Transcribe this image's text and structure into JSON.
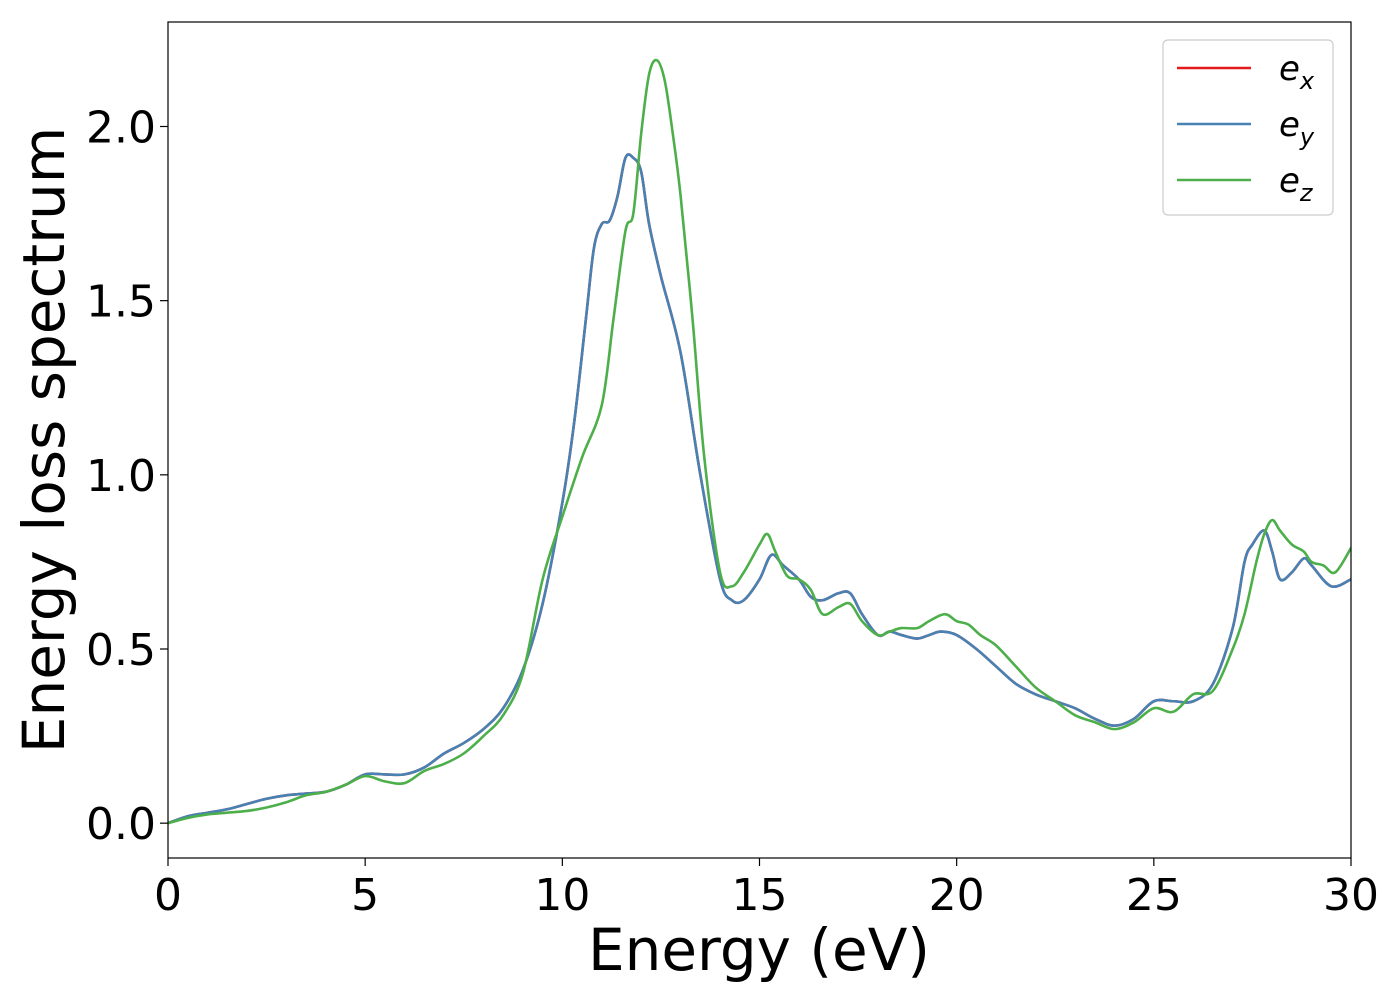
{
  "chart_data": {
    "type": "line",
    "title": "",
    "xlabel": "Energy (eV)",
    "ylabel": "Energy loss spectrum",
    "xlim": [
      0,
      30
    ],
    "ylim": [
      -0.1,
      2.3
    ],
    "xticks": [
      0,
      5,
      10,
      15,
      20,
      25,
      30
    ],
    "xtick_labels": [
      "0",
      "5",
      "10",
      "15",
      "20",
      "25",
      "30"
    ],
    "yticks": [
      0.0,
      0.5,
      1.0,
      1.5,
      2.0
    ],
    "ytick_labels": [
      "0.0",
      "0.5",
      "1.0",
      "1.5",
      "2.0"
    ],
    "grid": false,
    "legend_position": "top-right",
    "series": [
      {
        "name": "e",
        "subscript": "x",
        "color": "#e41a1c",
        "x": [
          0,
          0.5,
          1,
          1.5,
          2,
          2.5,
          3,
          3.5,
          4,
          4.5,
          5,
          5.5,
          6,
          6.5,
          7,
          7.5,
          8,
          8.5,
          9,
          9.5,
          10,
          10.3,
          10.6,
          10.8,
          11,
          11.2,
          11.4,
          11.6,
          11.8,
          12,
          12.2,
          12.5,
          13,
          13.5,
          14,
          14.3,
          14.6,
          15,
          15.3,
          15.6,
          16,
          16.3,
          16.6,
          17,
          17.3,
          17.6,
          18,
          18.3,
          18.6,
          19,
          19.3,
          19.6,
          20,
          20.5,
          21,
          21.5,
          22,
          22.5,
          23,
          23.5,
          24,
          24.5,
          25,
          25.5,
          26,
          26.5,
          27,
          27.3,
          27.5,
          27.8,
          28,
          28.2,
          28.5,
          28.8,
          29,
          29.5,
          30
        ],
        "y": [
          0,
          0.02,
          0.03,
          0.04,
          0.055,
          0.07,
          0.08,
          0.085,
          0.09,
          0.11,
          0.14,
          0.14,
          0.14,
          0.16,
          0.2,
          0.23,
          0.27,
          0.33,
          0.44,
          0.63,
          0.92,
          1.15,
          1.45,
          1.65,
          1.72,
          1.73,
          1.8,
          1.91,
          1.91,
          1.87,
          1.72,
          1.57,
          1.35,
          1.0,
          0.7,
          0.64,
          0.64,
          0.7,
          0.77,
          0.74,
          0.7,
          0.65,
          0.64,
          0.66,
          0.66,
          0.6,
          0.54,
          0.55,
          0.54,
          0.53,
          0.54,
          0.55,
          0.54,
          0.5,
          0.45,
          0.4,
          0.37,
          0.35,
          0.33,
          0.3,
          0.28,
          0.3,
          0.35,
          0.35,
          0.35,
          0.4,
          0.56,
          0.75,
          0.8,
          0.84,
          0.78,
          0.7,
          0.72,
          0.76,
          0.74,
          0.68,
          0.7
        ]
      },
      {
        "name": "e",
        "subscript": "y",
        "color": "#4682b4",
        "x": [
          0,
          0.5,
          1,
          1.5,
          2,
          2.5,
          3,
          3.5,
          4,
          4.5,
          5,
          5.5,
          6,
          6.5,
          7,
          7.5,
          8,
          8.5,
          9,
          9.5,
          10,
          10.3,
          10.6,
          10.8,
          11,
          11.2,
          11.4,
          11.6,
          11.8,
          12,
          12.2,
          12.5,
          13,
          13.5,
          14,
          14.3,
          14.6,
          15,
          15.3,
          15.6,
          16,
          16.3,
          16.6,
          17,
          17.3,
          17.6,
          18,
          18.3,
          18.6,
          19,
          19.3,
          19.6,
          20,
          20.5,
          21,
          21.5,
          22,
          22.5,
          23,
          23.5,
          24,
          24.5,
          25,
          25.5,
          26,
          26.5,
          27,
          27.3,
          27.5,
          27.8,
          28,
          28.2,
          28.5,
          28.8,
          29,
          29.5,
          30
        ],
        "y": [
          0,
          0.02,
          0.03,
          0.04,
          0.055,
          0.07,
          0.08,
          0.085,
          0.09,
          0.11,
          0.14,
          0.14,
          0.14,
          0.16,
          0.2,
          0.23,
          0.27,
          0.33,
          0.44,
          0.63,
          0.92,
          1.15,
          1.45,
          1.65,
          1.72,
          1.73,
          1.8,
          1.91,
          1.91,
          1.87,
          1.72,
          1.57,
          1.35,
          1.0,
          0.7,
          0.64,
          0.64,
          0.7,
          0.77,
          0.74,
          0.7,
          0.65,
          0.64,
          0.66,
          0.66,
          0.6,
          0.54,
          0.55,
          0.54,
          0.53,
          0.54,
          0.55,
          0.54,
          0.5,
          0.45,
          0.4,
          0.37,
          0.35,
          0.33,
          0.3,
          0.28,
          0.3,
          0.35,
          0.35,
          0.35,
          0.4,
          0.56,
          0.75,
          0.8,
          0.84,
          0.78,
          0.7,
          0.72,
          0.76,
          0.74,
          0.68,
          0.7
        ]
      },
      {
        "name": "e",
        "subscript": "z",
        "color": "#4daf4a",
        "x": [
          0,
          0.5,
          1,
          1.5,
          2,
          2.5,
          3,
          3.5,
          4,
          4.5,
          5,
          5.5,
          6,
          6.5,
          7,
          7.5,
          8,
          8.5,
          9,
          9.5,
          10,
          10.5,
          11,
          11.3,
          11.6,
          11.8,
          12,
          12.2,
          12.4,
          12.6,
          12.8,
          13,
          13.3,
          13.6,
          14,
          14.3,
          14.6,
          15,
          15.2,
          15.4,
          15.7,
          16,
          16.3,
          16.6,
          17,
          17.3,
          17.6,
          18,
          18.3,
          18.6,
          19,
          19.3,
          19.7,
          20,
          20.3,
          20.6,
          21,
          21.5,
          22,
          22.5,
          23,
          23.5,
          24,
          24.5,
          25,
          25.5,
          26,
          26.5,
          27,
          27.3,
          27.6,
          27.8,
          28,
          28.2,
          28.5,
          28.8,
          29,
          29.3,
          29.6,
          30
        ],
        "y": [
          0,
          0.015,
          0.025,
          0.03,
          0.035,
          0.045,
          0.06,
          0.08,
          0.09,
          0.11,
          0.135,
          0.12,
          0.115,
          0.15,
          0.17,
          0.2,
          0.25,
          0.31,
          0.43,
          0.7,
          0.88,
          1.05,
          1.2,
          1.45,
          1.7,
          1.75,
          1.98,
          2.15,
          2.19,
          2.13,
          1.98,
          1.8,
          1.45,
          1.05,
          0.72,
          0.68,
          0.72,
          0.8,
          0.83,
          0.78,
          0.71,
          0.7,
          0.67,
          0.6,
          0.62,
          0.63,
          0.58,
          0.54,
          0.55,
          0.56,
          0.56,
          0.58,
          0.6,
          0.58,
          0.57,
          0.54,
          0.51,
          0.45,
          0.39,
          0.35,
          0.31,
          0.29,
          0.27,
          0.29,
          0.33,
          0.32,
          0.37,
          0.38,
          0.5,
          0.6,
          0.75,
          0.83,
          0.87,
          0.84,
          0.8,
          0.78,
          0.75,
          0.74,
          0.72,
          0.79
        ]
      }
    ]
  }
}
